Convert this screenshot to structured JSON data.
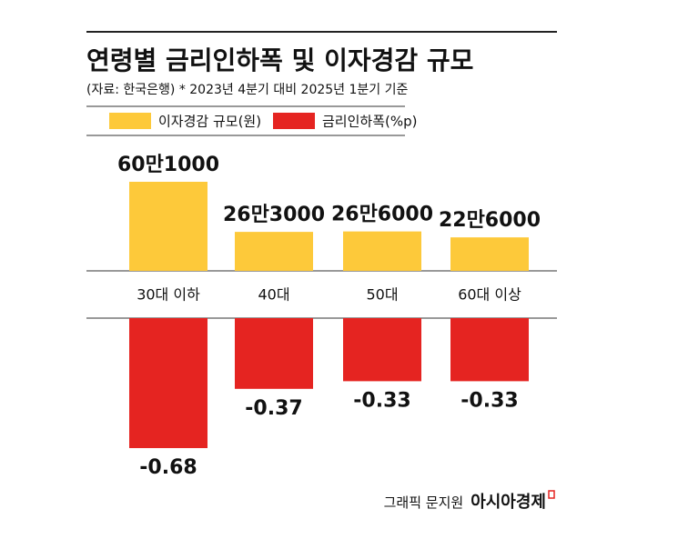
{
  "chart_data": {
    "type": "bar",
    "title": "연령별 금리인하폭 및 이자경감 규모",
    "subtitle": "(자료: 한국은행) * 2023년 4분기 대비 2025년 1분기 기준",
    "categories": [
      "30대 이하",
      "40대",
      "50대",
      "60대 이상"
    ],
    "series": [
      {
        "name": "이자경감 규모(원)",
        "color": "#fdc93a",
        "values": [
          601000,
          263000,
          266000,
          226000
        ],
        "value_labels": [
          "60만1000",
          "26만3000",
          "26만6000",
          "22만6000"
        ]
      },
      {
        "name": "금리인하폭(%p)",
        "color": "#e52421",
        "values": [
          -0.68,
          -0.37,
          -0.33,
          -0.33
        ]
      }
    ]
  },
  "credit": {
    "author": "그래픽 문지원",
    "publisher": "아시아경제"
  }
}
